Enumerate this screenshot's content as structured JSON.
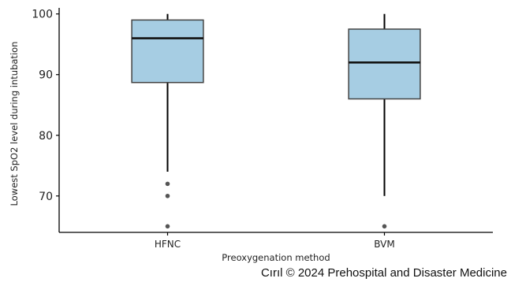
{
  "chart_data": {
    "type": "box",
    "title": "",
    "xlabel": "Preoxygenation method",
    "ylabel": "Lowest SpO2 level during intubation",
    "ylim": [
      64,
      101
    ],
    "yticks": [
      70,
      80,
      90,
      100
    ],
    "grid": false,
    "legend": "none",
    "box_fill": "#a6cde3",
    "box_stroke": "#444444",
    "categories": [
      "HFNC",
      "BVM"
    ],
    "boxes": [
      {
        "category": "HFNC",
        "whisker_low": 74,
        "q1": 88.7,
        "median": 96,
        "q3": 99,
        "whisker_high": 100,
        "outliers": [
          72,
          70,
          65
        ]
      },
      {
        "category": "BVM",
        "whisker_low": 70,
        "q1": 86,
        "median": 92,
        "q3": 97.5,
        "whisker_high": 100,
        "outliers": [
          65
        ]
      }
    ]
  },
  "credit": "Cırıl © 2024 Prehospital and Disaster Medicine"
}
